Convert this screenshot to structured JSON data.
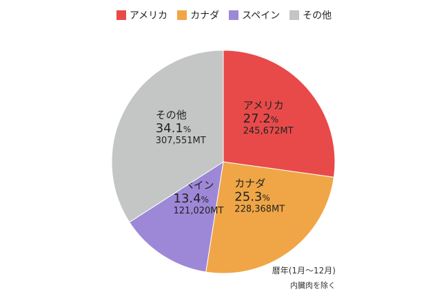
{
  "chart_data": {
    "type": "pie",
    "title": "",
    "legend_placement": "top",
    "unit_percent": "%",
    "slices": [
      {
        "label": "アメリカ",
        "value": 27.2,
        "amount": "245,672MT",
        "color": "#e84a4a"
      },
      {
        "label": "カナダ",
        "value": 25.3,
        "amount": "228,368MT",
        "color": "#f0a646"
      },
      {
        "label": "スペイン",
        "value": 13.4,
        "amount": "121,020MT",
        "color": "#9d88d8"
      },
      {
        "label": "その他",
        "value": 34.1,
        "amount": "307,551MT",
        "color": "#c4c6c5"
      }
    ]
  },
  "notes": {
    "period": "暦年(1月〜12月)",
    "exclusion": "内臓肉を除く"
  }
}
